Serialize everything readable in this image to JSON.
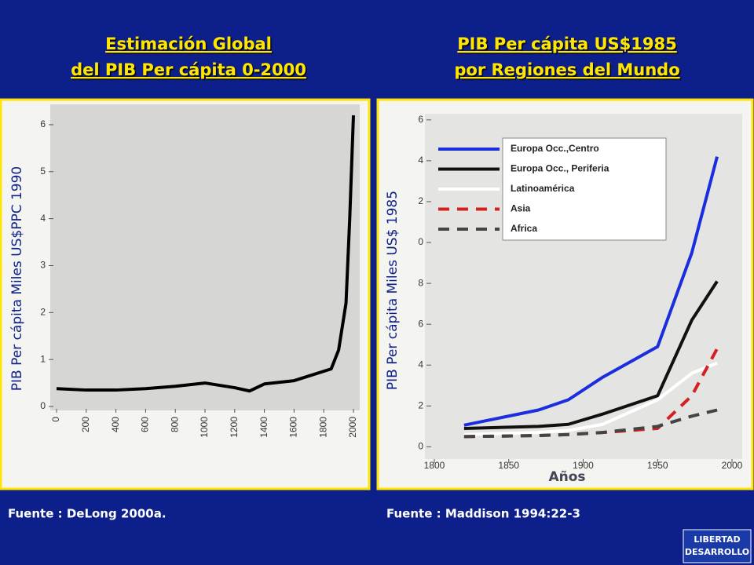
{
  "chart_data": [
    {
      "type": "line",
      "title": [
        "Estimación Global",
        "del PIB Per cápita 0-2000"
      ],
      "ylabel": "PIB Per cápita Miles US$PPC 1990",
      "x": [
        0,
        200,
        400,
        600,
        800,
        1000,
        1200,
        1300,
        1400,
        1600,
        1800,
        1850,
        1900,
        1950,
        1975,
        2000
      ],
      "values": [
        0.38,
        0.35,
        0.35,
        0.38,
        0.43,
        0.5,
        0.4,
        0.33,
        0.48,
        0.55,
        0.75,
        0.8,
        1.2,
        2.2,
        4,
        6.2
      ],
      "color": "#000000",
      "xlim": [
        0,
        2000
      ],
      "xticks": [
        0,
        200,
        400,
        600,
        800,
        1000,
        1200,
        1400,
        1600,
        1800,
        2000
      ],
      "ylim": [
        -0.05,
        6.4
      ],
      "yticks": [
        0,
        1,
        2,
        3,
        4,
        5,
        6
      ]
    },
    {
      "type": "line",
      "title": [
        "PIB Per cápita US$1985",
        "por Regiones del Mundo"
      ],
      "ylabel": "PIB Per cápita Miles US$ 1985",
      "xlabel": "Años",
      "x": [
        1820,
        1870,
        1890,
        1913,
        1950,
        1973,
        1990
      ],
      "series": [
        {
          "name": "Europa  Occ.,Centro",
          "color": "#1a2ee0",
          "line_style": "solid",
          "values": [
            1.06,
            1.8,
            2.3,
            3.4,
            4.9,
            9.5,
            14.2
          ]
        },
        {
          "name": "Europa  Occ., Periferia",
          "color": "#111111",
          "line_style": "solid",
          "values": [
            0.9,
            1.0,
            1.1,
            1.6,
            2.5,
            6.2,
            8.1
          ]
        },
        {
          "name": "Latinoamérica",
          "color": "#ffffff",
          "line_style": "solid",
          "values": [
            0.6,
            0.7,
            0.8,
            1.1,
            2.3,
            3.6,
            4.1
          ]
        },
        {
          "name": "Asia",
          "color": "#d42020",
          "line_style": "dashed",
          "values": [
            0.5,
            0.55,
            0.6,
            0.7,
            0.9,
            2.5,
            4.8
          ]
        },
        {
          "name": "Africa",
          "color": "#444444",
          "line_style": "dashed",
          "values": [
            0.5,
            0.55,
            0.6,
            0.7,
            1.0,
            1.5,
            1.8
          ]
        }
      ],
      "xlim": [
        1800,
        2000
      ],
      "xticks": [
        1800,
        1850,
        1900,
        1950,
        2000
      ],
      "ylim": [
        -0.6,
        16.3
      ],
      "yticks": [
        0,
        2,
        4,
        6,
        8,
        {
          "value": 10,
          "label": "0"
        },
        {
          "value": 12,
          "label": "2"
        },
        {
          "value": 14,
          "label": "4"
        },
        {
          "value": 16,
          "label": "6"
        }
      ]
    }
  ],
  "sources": [
    "Fuente : DeLong 2000a.",
    "Fuente : Maddison 1994:22-3"
  ],
  "logo": [
    "LIBERTAD",
    "DESARROLLO"
  ]
}
